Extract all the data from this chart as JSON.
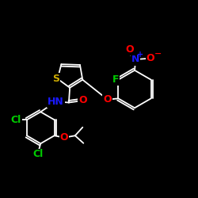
{
  "background": "#000000",
  "bond_color": "#ffffff",
  "bond_lw": 1.3,
  "S_color": "#ccaa00",
  "O_color": "#ff0000",
  "N_color": "#1a1aff",
  "F_color": "#00cc00",
  "Cl_color": "#00cc00",
  "NH_color": "#1a1aff",
  "xlim": [
    0,
    10
  ],
  "ylim": [
    0,
    10
  ]
}
